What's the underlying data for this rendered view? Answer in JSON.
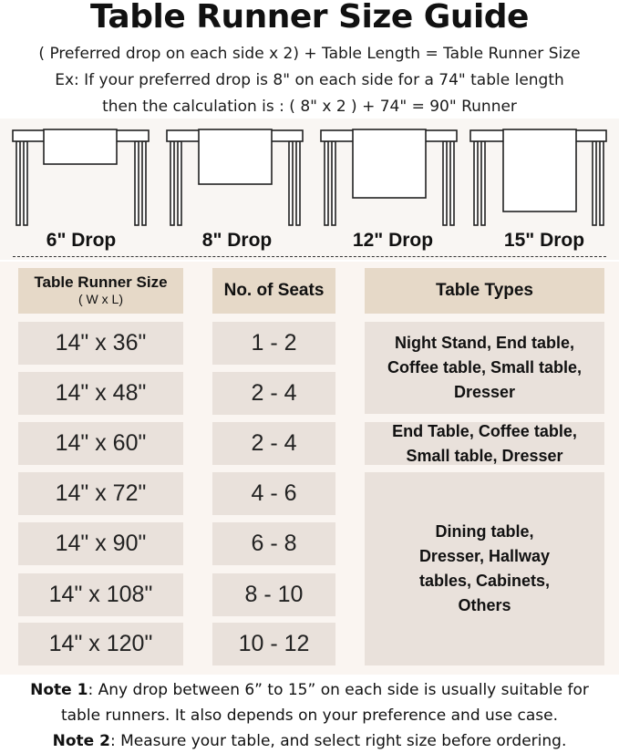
{
  "title": "Table Runner Size Guide",
  "formula": "( Preferred drop on each side x 2) + Table Length = Table Runner Size",
  "example_line1": "Ex: If your preferred drop is 8\" on each side for a 74\" table length",
  "example_line2": "then the calculation is : ( 8\" x 2 ) + 74\" = 90\" Runner",
  "drops": [
    "6\" Drop",
    "8\" Drop",
    "12\" Drop",
    "15\" Drop"
  ],
  "table": {
    "headers": {
      "size": "Table Runner Size",
      "size_sub": "( W x L)",
      "seats": "No. of Seats",
      "types": "Table Types"
    },
    "rows": [
      {
        "size": "14\" x 36\"",
        "seats": "1 - 2"
      },
      {
        "size": "14\" x 48\"",
        "seats": "2 - 4"
      },
      {
        "size": "14\" x 60\"",
        "seats": "2 - 4"
      },
      {
        "size": "14\" x 72\"",
        "seats": "4 - 6"
      },
      {
        "size": "14\" x 90\"",
        "seats": "6 - 8"
      },
      {
        "size": "14\" x 108\"",
        "seats": "8 - 10"
      },
      {
        "size": "14\" x 120\"",
        "seats": "10 - 12"
      }
    ],
    "types": [
      "Night Stand, End table, Coffee table, Small table, Dresser",
      "End Table, Coffee table, Small table, Dresser",
      "Dining table, Dresser, Hallway tables, Cabinets, Others"
    ]
  },
  "notes": {
    "note1_label": "Note 1",
    "note1_text": ": Any drop between 6” to 15” on each side is usually suitable for",
    "note1_text2": "table runners. It also depends on your preference and use case.",
    "note2_label": "Note 2",
    "note2_text": ": Measure your table, and select right size before ordering."
  },
  "colors": {
    "header_cell": "#e6d9c8",
    "body_cell": "#e9e1db",
    "panel": "#faf5f1"
  }
}
